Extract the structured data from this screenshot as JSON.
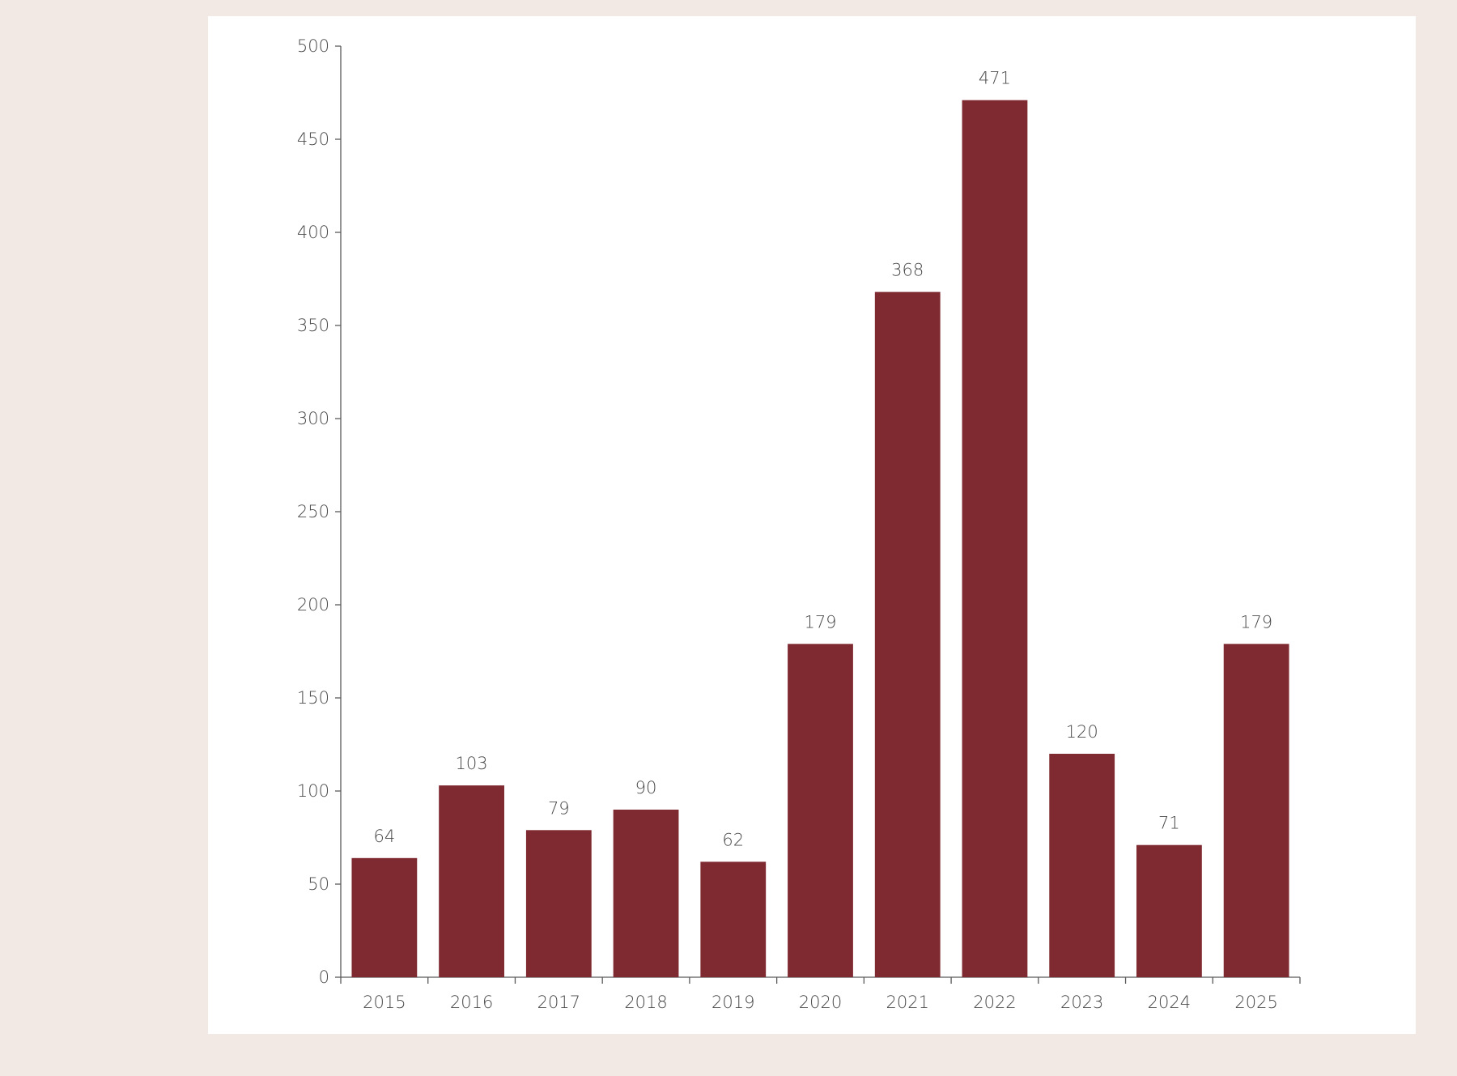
{
  "chart_data": {
    "type": "bar",
    "title": "",
    "xlabel": "",
    "ylabel": "",
    "categories": [
      "2015",
      "2016",
      "2017",
      "2018",
      "2019",
      "2020",
      "2021",
      "2022",
      "2023",
      "2024",
      "2025"
    ],
    "values": [
      64,
      103,
      79,
      90,
      62,
      179,
      368,
      471,
      120,
      71,
      179
    ],
    "value_labels": [
      "64",
      "103",
      "79",
      "90",
      "62",
      "179",
      "368",
      "471",
      "120",
      "71",
      "179"
    ],
    "ylim": [
      0,
      500
    ],
    "yticks": [
      0,
      50,
      100,
      150,
      200,
      250,
      300,
      350,
      400,
      450,
      500
    ],
    "ytick_labels": [
      "0",
      "50",
      "100",
      "150",
      "200",
      "250",
      "300",
      "350",
      "400",
      "450",
      "500"
    ],
    "grid": false,
    "legend": "none",
    "colors": {
      "bar": "#7f2a31",
      "panel_background": "#ffffff",
      "page_background": "#f3e9e4",
      "text": "#4a4a4a",
      "axis": "#5a5a5a"
    }
  }
}
